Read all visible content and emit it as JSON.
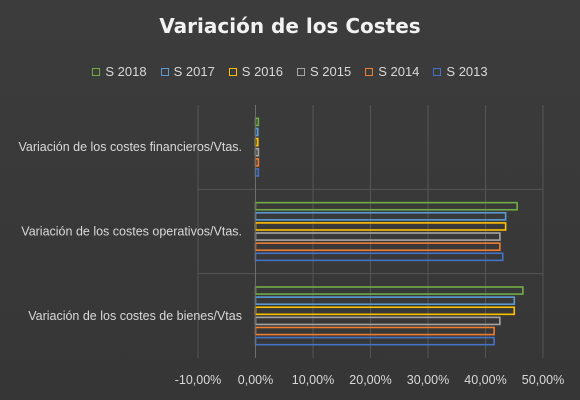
{
  "chart_data": {
    "type": "bar",
    "orientation": "horizontal",
    "title": "Variación de los Costes",
    "categories": [
      "Variación de los costes financieros/Vtas.",
      "Variación de los costes operativos/Vtas.",
      "Variación de los costes de bienes/Vtas"
    ],
    "series": [
      {
        "name": "S 2018",
        "color": "#70ad47",
        "values": [
          0.5,
          45.5,
          46.5
        ]
      },
      {
        "name": "S 2017",
        "color": "#5b9bd5",
        "values": [
          0.4,
          43.5,
          45.0
        ]
      },
      {
        "name": "S 2016",
        "color": "#ffc000",
        "values": [
          0.4,
          43.5,
          45.0
        ]
      },
      {
        "name": "S 2015",
        "color": "#a5a5a5",
        "values": [
          0.5,
          42.5,
          42.5
        ]
      },
      {
        "name": "S 2014",
        "color": "#ed7d31",
        "values": [
          0.5,
          42.5,
          41.5
        ]
      },
      {
        "name": "S 2013",
        "color": "#4472c4",
        "values": [
          0.5,
          43.0,
          41.5
        ]
      }
    ],
    "xlim": [
      -10,
      50
    ],
    "xticks": [
      "-10,00%",
      "0,00%",
      "10,00%",
      "20,00%",
      "30,00%",
      "40,00%",
      "50,00%"
    ],
    "xtick_values": [
      -10,
      0,
      10,
      20,
      30,
      40,
      50
    ],
    "legend": "top",
    "grid": true
  }
}
